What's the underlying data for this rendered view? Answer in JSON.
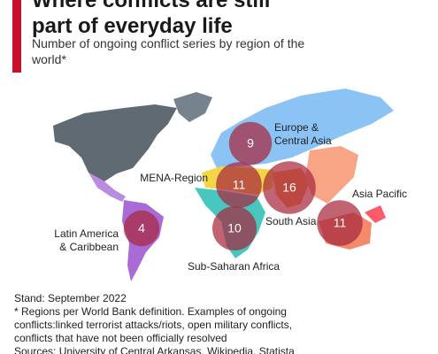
{
  "chart_data": {
    "type": "bubble",
    "title": "Where conflicts are still part of everyday life",
    "subtitle": "Number of ongoing conflict series by region of the world*",
    "categories": [
      "Europe & Central Asia",
      "MENA-Region",
      "South Asia",
      "Asia Pacific",
      "Latin America & Caribbean",
      "Sub-Saharan Africa"
    ],
    "values": [
      9,
      11,
      16,
      11,
      4,
      10
    ],
    "color": "#a8283f",
    "notes": [
      "Stand: September 2022",
      "* Regions per World Bank definition. Examples of ongoing conflicts:linked terrorist attacks/riots, open military conflicts, conflicts that have not been officially resolved",
      "Sources: University of Central Arkansas, Wikipedia, Statista research"
    ]
  }
}
